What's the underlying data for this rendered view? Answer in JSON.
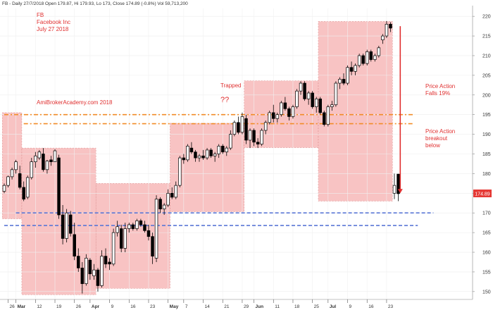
{
  "chart_data": {
    "type": "candlestick",
    "header": "FB - Daily 27/7/2018 Open 179.87, Hi 179.93, Lo 173, Close 174.89 (-0.8%) Vol 59,713,200",
    "title_lines": [
      "FB",
      "Facebook Inc",
      "July 27 2018"
    ],
    "watermark": "AmiBrokerAcademy.com  2018",
    "annotations": {
      "trapped": "Trapped",
      "question": "??",
      "falls": [
        "Price Action",
        "Falls 19%"
      ],
      "breakout": [
        "Price Action",
        "breakout",
        "below"
      ]
    },
    "last_price_label": "174.89",
    "y_range": [
      148,
      222
    ],
    "y_ticks": [
      150,
      155,
      160,
      165,
      170,
      175,
      180,
      185,
      190,
      195,
      200,
      205,
      210,
      215,
      220
    ],
    "x_ticks": [
      {
        "i": 1,
        "label": "26"
      },
      {
        "i": 3,
        "label": "Mar"
      },
      {
        "i": 8,
        "label": "12"
      },
      {
        "i": 13,
        "label": "19"
      },
      {
        "i": 18,
        "label": "26"
      },
      {
        "i": 22,
        "label": "Apr"
      },
      {
        "i": 27,
        "label": "9"
      },
      {
        "i": 32,
        "label": "16"
      },
      {
        "i": 37,
        "label": "23"
      },
      {
        "i": 42,
        "label": "May"
      },
      {
        "i": 46,
        "label": "7"
      },
      {
        "i": 51,
        "label": "14"
      },
      {
        "i": 56,
        "label": "21"
      },
      {
        "i": 61,
        "label": "29"
      },
      {
        "i": 64,
        "label": "Jun"
      },
      {
        "i": 69,
        "label": "11"
      },
      {
        "i": 74,
        "label": "18"
      },
      {
        "i": 79,
        "label": "25"
      },
      {
        "i": 83,
        "label": "Jul"
      },
      {
        "i": 88,
        "label": "9"
      },
      {
        "i": 93,
        "label": "16"
      },
      {
        "i": 98,
        "label": "23"
      }
    ],
    "hlines": [
      {
        "y": 195,
        "color": "#f28c28",
        "dash": "6,3,2,3",
        "i0": 0,
        "i1": 105
      },
      {
        "y": 192.7,
        "color": "#f28c28",
        "dash": "6,3,2,3",
        "i0": 5,
        "i1": 105
      },
      {
        "y": 170,
        "color": "#5b78d6",
        "dash": "5,3",
        "i0": 3,
        "i1": 110
      },
      {
        "y": 166.8,
        "color": "#5b78d6",
        "dash": "5,3",
        "i0": 0,
        "i1": 106
      }
    ],
    "zones": [
      {
        "i0": -1,
        "i1": 4,
        "top": 195.5,
        "bottom": 168.5
      },
      {
        "i0": 4,
        "i1": 23,
        "top": 186.5,
        "bottom": 149.2
      },
      {
        "i0": 23,
        "i1": 42,
        "top": 177.5,
        "bottom": 150.8
      },
      {
        "i0": 42,
        "i1": 61,
        "top": 192.8,
        "bottom": 170.3
      },
      {
        "i0": 61,
        "i1": 80,
        "top": 203.6,
        "bottom": 186.6
      },
      {
        "i0": 80,
        "i1": 99,
        "top": 218.7,
        "bottom": 173.0
      }
    ],
    "arrow": {
      "i": 101.5,
      "from": 217.5,
      "to": 175.0,
      "color": "#e03030"
    },
    "candles": [
      [
        175.5,
        177.5,
        175.0,
        177.0
      ],
      [
        177.0,
        179.5,
        176.5,
        179.2
      ],
      [
        179.2,
        181.5,
        178.5,
        181.0
      ],
      [
        181.0,
        183.5,
        180.0,
        183.0
      ],
      [
        180.0,
        182.0,
        176.0,
        176.5
      ],
      [
        176.5,
        178.0,
        173.0,
        173.5
      ],
      [
        174.0,
        179.5,
        173.5,
        179.0
      ],
      [
        179.0,
        184.0,
        178.5,
        183.0
      ],
      [
        183.0,
        185.5,
        181.5,
        184.5
      ],
      [
        184.0,
        186.0,
        183.5,
        185.5
      ],
      [
        185.0,
        186.5,
        180.5,
        181.0
      ],
      [
        181.0,
        183.5,
        180.0,
        183.2
      ],
      [
        183.5,
        184.5,
        182.0,
        183.0
      ],
      [
        183.0,
        186.2,
        183.0,
        185.8
      ],
      [
        184.0,
        184.8,
        168.5,
        169.5
      ],
      [
        169.5,
        172.0,
        162.0,
        163.5
      ],
      [
        163.5,
        171.0,
        162.5,
        170.0
      ],
      [
        169.5,
        170.5,
        164.0,
        164.8
      ],
      [
        164.5,
        167.5,
        158.0,
        159.0
      ],
      [
        159.0,
        161.0,
        155.0,
        156.0
      ],
      [
        156.0,
        157.5,
        149.5,
        152.0
      ],
      [
        152.0,
        159.5,
        151.5,
        158.5
      ],
      [
        158.0,
        158.5,
        153.0,
        154.5
      ],
      [
        154.0,
        157.0,
        153.0,
        155.5
      ],
      [
        155.5,
        156.0,
        150.0,
        151.5
      ],
      [
        151.5,
        160.5,
        151.0,
        159.0
      ],
      [
        159.0,
        161.0,
        156.0,
        157.0
      ],
      [
        157.5,
        158.5,
        155.5,
        157.0
      ],
      [
        157.0,
        166.0,
        156.5,
        165.0
      ],
      [
        165.0,
        168.0,
        164.0,
        166.5
      ],
      [
        166.0,
        167.0,
        160.0,
        161.0
      ],
      [
        161.0,
        167.5,
        160.0,
        166.0
      ],
      [
        166.0,
        167.5,
        165.0,
        167.0
      ],
      [
        167.0,
        167.5,
        165.5,
        166.0
      ],
      [
        166.0,
        168.5,
        165.5,
        168.0
      ],
      [
        168.0,
        168.5,
        166.5,
        167.0
      ],
      [
        167.0,
        168.0,
        165.0,
        165.5
      ],
      [
        165.5,
        167.0,
        163.0,
        164.0
      ],
      [
        164.0,
        165.0,
        157.0,
        159.0
      ],
      [
        158.5,
        174.5,
        157.5,
        173.5
      ],
      [
        173.5,
        174.0,
        170.0,
        171.0
      ],
      [
        171.0,
        172.5,
        169.5,
        172.0
      ],
      [
        172.0,
        176.0,
        171.5,
        175.0
      ],
      [
        175.0,
        176.5,
        173.5,
        174.0
      ],
      [
        174.0,
        178.0,
        173.5,
        177.0
      ],
      [
        177.0,
        184.5,
        176.5,
        184.0
      ],
      [
        184.0,
        185.0,
        182.5,
        183.5
      ],
      [
        183.5,
        187.5,
        183.0,
        187.0
      ],
      [
        186.5,
        188.0,
        185.0,
        185.5
      ],
      [
        185.5,
        186.0,
        183.0,
        184.0
      ],
      [
        184.0,
        185.0,
        183.0,
        184.5
      ],
      [
        184.5,
        186.0,
        183.5,
        184.0
      ],
      [
        184.0,
        186.5,
        183.5,
        186.0
      ],
      [
        186.0,
        186.5,
        184.0,
        184.5
      ],
      [
        184.5,
        185.5,
        183.0,
        185.0
      ],
      [
        185.0,
        187.5,
        184.0,
        187.0
      ],
      [
        187.0,
        187.5,
        185.0,
        185.5
      ],
      [
        185.5,
        187.0,
        184.5,
        186.5
      ],
      [
        186.5,
        191.0,
        186.0,
        190.0
      ],
      [
        190.0,
        193.5,
        189.5,
        193.0
      ],
      [
        193.0,
        194.5,
        190.0,
        190.5
      ],
      [
        190.5,
        195.5,
        190.0,
        194.5
      ],
      [
        194.0,
        195.0,
        187.5,
        188.5
      ],
      [
        188.5,
        191.5,
        186.5,
        191.0
      ],
      [
        191.0,
        191.5,
        187.0,
        188.0
      ],
      [
        188.0,
        189.0,
        186.5,
        187.5
      ],
      [
        187.5,
        191.5,
        187.0,
        191.0
      ],
      [
        191.0,
        193.5,
        190.0,
        193.0
      ],
      [
        193.0,
        196.0,
        192.5,
        195.5
      ],
      [
        195.5,
        197.5,
        193.0,
        194.0
      ],
      [
        194.0,
        195.5,
        193.0,
        195.0
      ],
      [
        195.0,
        198.5,
        194.5,
        198.0
      ],
      [
        198.0,
        199.5,
        196.0,
        196.5
      ],
      [
        196.5,
        197.0,
        193.5,
        194.5
      ],
      [
        194.5,
        197.5,
        194.0,
        197.0
      ],
      [
        197.0,
        201.5,
        196.5,
        201.0
      ],
      [
        201.0,
        203.5,
        200.0,
        203.0
      ],
      [
        203.0,
        203.5,
        198.5,
        199.0
      ],
      [
        199.0,
        201.0,
        197.5,
        200.5
      ],
      [
        200.5,
        201.0,
        196.5,
        197.0
      ],
      [
        197.0,
        199.5,
        195.5,
        199.0
      ],
      [
        199.0,
        199.5,
        195.0,
        195.5
      ],
      [
        195.5,
        196.0,
        192.0,
        192.5
      ],
      [
        192.5,
        197.5,
        192.0,
        197.0
      ],
      [
        197.0,
        198.5,
        196.0,
        197.5
      ],
      [
        197.5,
        203.5,
        197.0,
        203.0
      ],
      [
        203.0,
        204.5,
        201.5,
        204.0
      ],
      [
        204.0,
        205.5,
        202.5,
        203.0
      ],
      [
        203.0,
        207.5,
        202.5,
        207.0
      ],
      [
        207.0,
        208.5,
        205.0,
        206.0
      ],
      [
        206.0,
        208.0,
        205.0,
        207.5
      ],
      [
        207.5,
        210.5,
        207.0,
        210.0
      ],
      [
        210.0,
        210.5,
        207.5,
        208.0
      ],
      [
        208.0,
        211.5,
        207.5,
        211.0
      ],
      [
        211.0,
        211.5,
        208.5,
        209.0
      ],
      [
        209.0,
        210.5,
        208.5,
        210.0
      ],
      [
        210.0,
        212.5,
        209.5,
        212.0
      ],
      [
        214.0,
        215.5,
        213.0,
        215.0
      ],
      [
        215.0,
        218.8,
        214.5,
        218.0
      ],
      [
        218.0,
        218.5,
        216.0,
        217.0
      ],
      [
        175.0,
        180.0,
        173.5,
        177.0
      ],
      [
        179.87,
        179.93,
        173.0,
        174.89
      ]
    ]
  }
}
